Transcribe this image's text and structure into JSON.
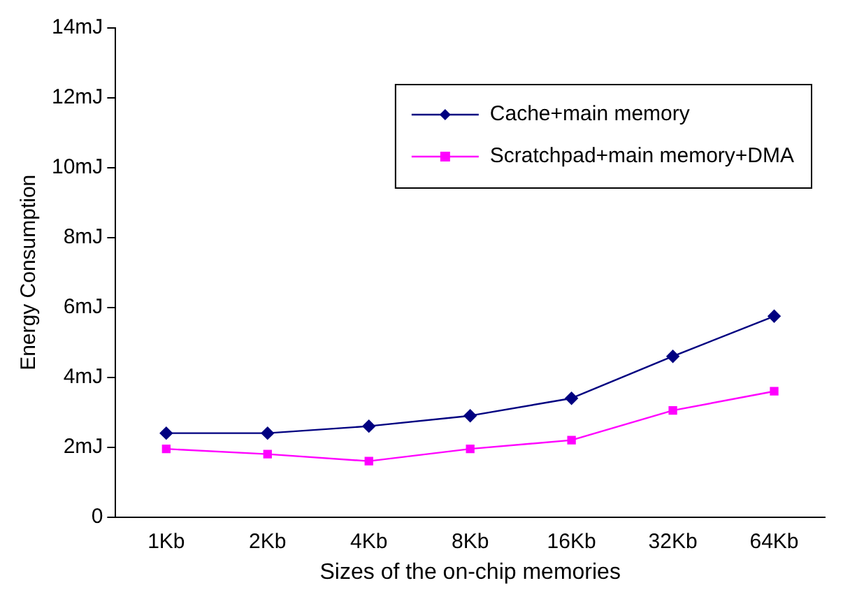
{
  "chart_data": {
    "type": "line",
    "xlabel": "Sizes of the on-chip memories",
    "ylabel": "Energy Consumption",
    "categories": [
      "1Kb",
      "2Kb",
      "4Kb",
      "8Kb",
      "16Kb",
      "32Kb",
      "64Kb"
    ],
    "series": [
      {
        "name": "Cache+main memory",
        "color": "#000080",
        "marker": "diamond",
        "values": [
          2.4,
          2.4,
          2.6,
          2.9,
          3.4,
          4.6,
          5.75
        ]
      },
      {
        "name": "Scratchpad+main memory+DMA",
        "color": "#ff00ff",
        "marker": "square",
        "values": [
          1.95,
          1.8,
          1.6,
          1.95,
          2.2,
          3.05,
          3.6
        ]
      }
    ],
    "ylim": [
      0,
      14
    ],
    "yticks": [
      0,
      {
        "value": 2,
        "label": "2mJ"
      },
      {
        "value": 4,
        "label": "4mJ"
      },
      {
        "value": 6,
        "label": "6mJ"
      },
      {
        "value": 8,
        "label": "8mJ"
      },
      {
        "value": 10,
        "label": "10mJ"
      },
      {
        "value": 12,
        "label": "12mJ"
      },
      {
        "value": 14,
        "label": "14mJ"
      }
    ],
    "grid": false,
    "legend": "top right",
    "line_style": "solid"
  }
}
